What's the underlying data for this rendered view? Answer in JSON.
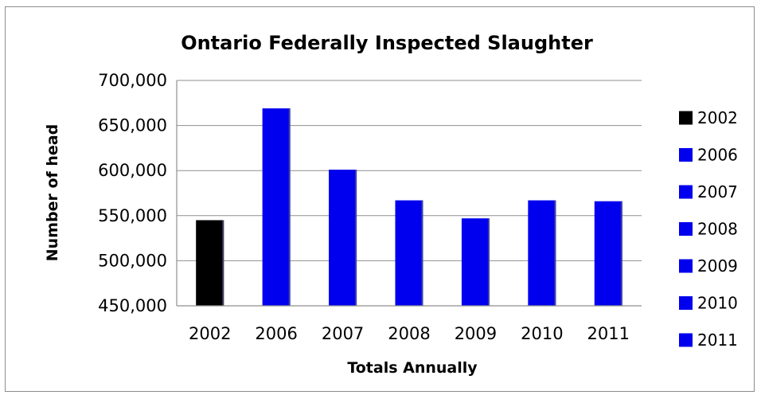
{
  "chart_data": {
    "type": "bar",
    "title": "Ontario Federally Inspected  Slaughter",
    "xlabel": "Totals Annually",
    "ylabel": "Number of head",
    "categories": [
      "2002",
      "2006",
      "2007",
      "2008",
      "2009",
      "2010",
      "2011"
    ],
    "values": [
      545000,
      669000,
      601000,
      567000,
      547000,
      567000,
      566000
    ],
    "ylim": [
      450000,
      700000
    ],
    "yticks": [
      450000,
      500000,
      550000,
      600000,
      650000,
      700000
    ],
    "ytick_labels": [
      "450,000",
      "500,000",
      "550,000",
      "600,000",
      "650,000",
      "700,000"
    ],
    "grid": true,
    "legend": "right",
    "legend_entries": [
      "2002",
      "2006",
      "2007",
      "2008",
      "2009",
      "2010",
      "2011"
    ],
    "colors": [
      "#000000",
      "#0000ee",
      "#0000ee",
      "#0000ee",
      "#0000ee",
      "#0000ee",
      "#0000ee"
    ]
  }
}
